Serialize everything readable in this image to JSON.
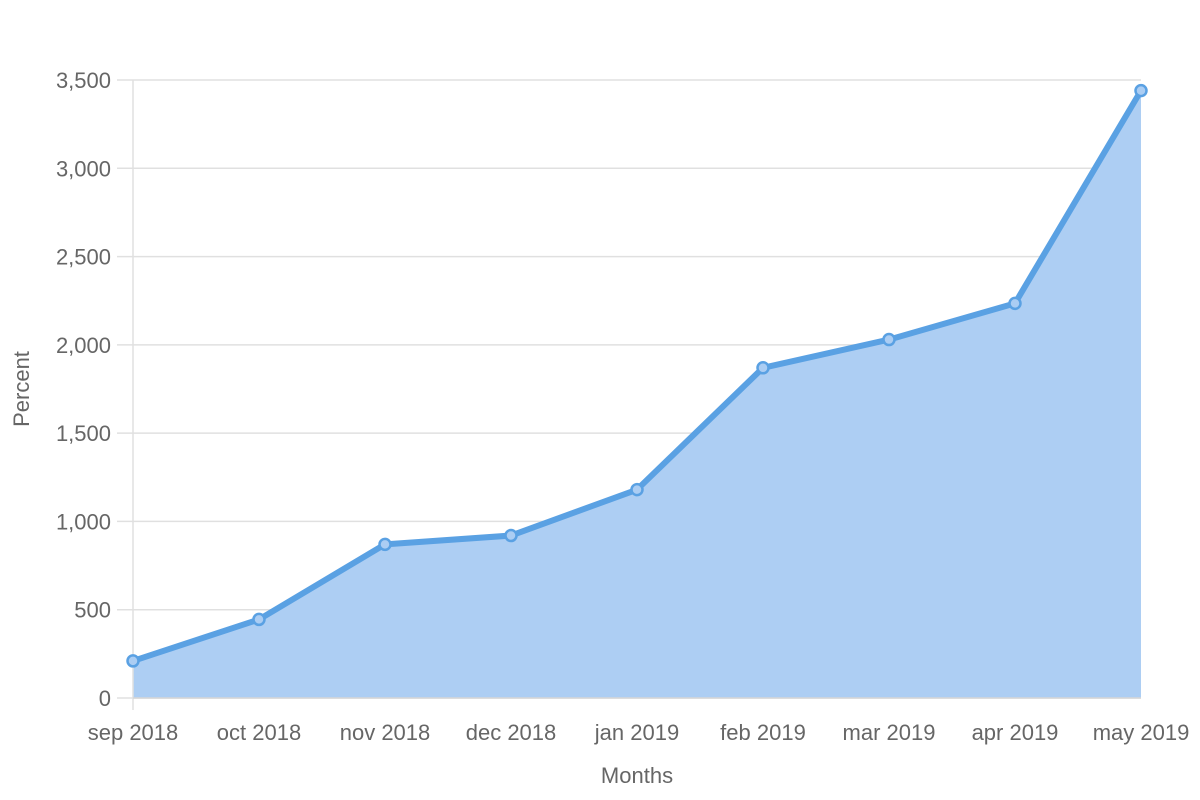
{
  "chart_data": {
    "type": "area",
    "title": "",
    "xlabel": "Months",
    "ylabel": "Percent",
    "categories": [
      "sep 2018",
      "oct 2018",
      "nov 2018",
      "dec 2018",
      "jan 2019",
      "feb 2019",
      "mar 2019",
      "apr 2019",
      "may 2019"
    ],
    "series": [
      {
        "values": [
          210,
          445,
          870,
          920,
          1180,
          1870,
          2030,
          2235,
          3440
        ]
      }
    ],
    "ylim": [
      0,
      3500
    ],
    "yticks": [
      0,
      500,
      1000,
      1500,
      2000,
      2500,
      3000,
      3500
    ],
    "ytick_labels": [
      "0",
      "500",
      "1,000",
      "1,500",
      "2,000",
      "2,500",
      "3,000",
      "3,500"
    ],
    "grid": true,
    "legend": "none",
    "colors": {
      "line": "#5aa1e3",
      "fill": "#abcdf3",
      "grid": "#e0e0e0",
      "text": "#666666"
    }
  }
}
